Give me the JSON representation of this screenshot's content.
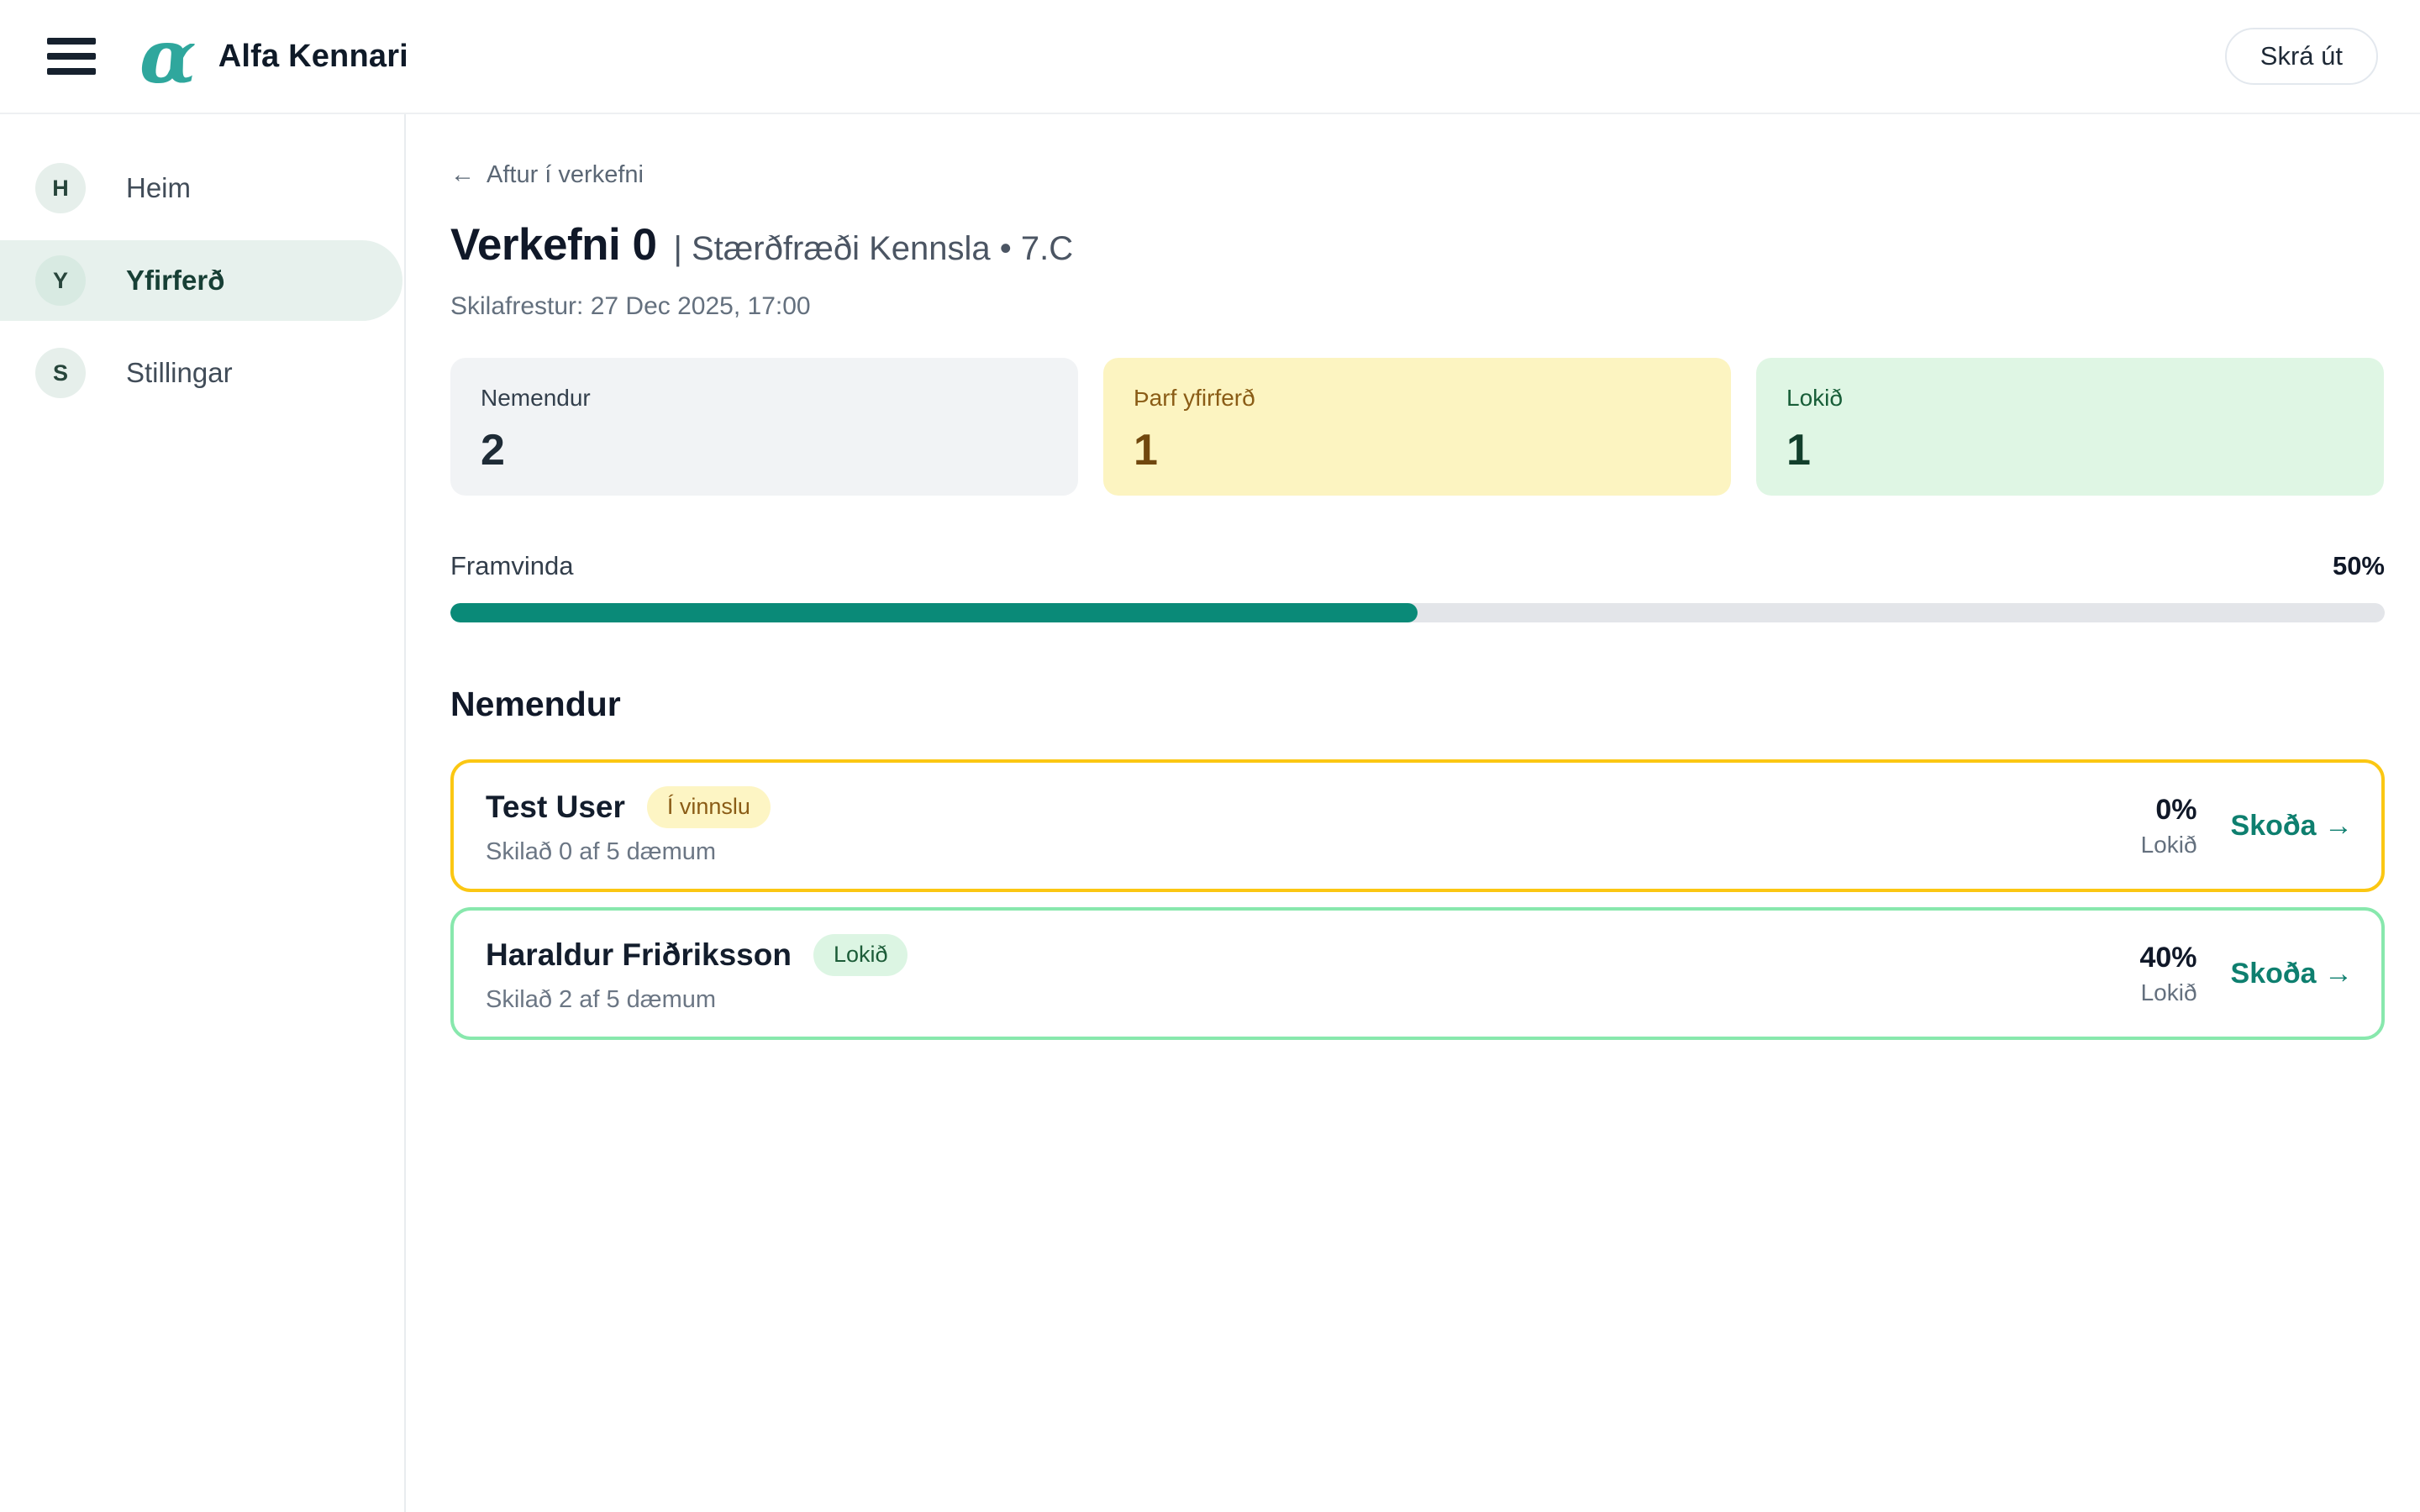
{
  "header": {
    "logo_char": "α",
    "brand": "Alfa Kennari",
    "logout_label": "Skrá út"
  },
  "sidebar": {
    "items": [
      {
        "initial": "H",
        "label": "Heim",
        "active": false
      },
      {
        "initial": "Y",
        "label": "Yfirferð",
        "active": true
      },
      {
        "initial": "S",
        "label": "Stillingar",
        "active": false
      }
    ]
  },
  "main": {
    "back_arrow": "←",
    "back_label": "Aftur í verkefni",
    "title": "Verkefni 0",
    "subtitle": "| Stærðfræði Kennsla • 7.C",
    "deadline": "Skilafrestur: 27 Dec 2025, 17:00"
  },
  "stats": [
    {
      "label": "Nemendur",
      "value": "2",
      "variant": "gray"
    },
    {
      "label": "Þarf yfirferð",
      "value": "1",
      "variant": "yellow"
    },
    {
      "label": "Lokið",
      "value": "1",
      "variant": "green"
    }
  ],
  "progress": {
    "label": "Framvinda",
    "percent": 50,
    "percent_label": "50%"
  },
  "students": {
    "heading": "Nemendur",
    "rows": [
      {
        "name": "Test User",
        "badge": "Í vinnslu",
        "badge_variant": "yellow",
        "sub": "Skilað 0 af 5 dæmum",
        "percent": "0%",
        "percent_caption": "Lokið",
        "action": "Skoða →",
        "border_variant": "yellow"
      },
      {
        "name": "Haraldur Friðriksson",
        "badge": "Lokið",
        "badge_variant": "green",
        "sub": "Skilað 2 af 5 dæmum",
        "percent": "40%",
        "percent_caption": "Lokið",
        "action": "Skoða →",
        "border_variant": "green"
      }
    ]
  },
  "colors": {
    "accent_teal": "#0a8a78",
    "logo_teal": "#2fa79d",
    "link_teal": "#0e7f6f",
    "card_yellow_border": "#fbc713",
    "card_green_border": "#88e8ad",
    "stat_yellow_bg": "#fcf4c1",
    "stat_green_bg": "#dff6e4",
    "stat_gray_bg": "#f1f3f5",
    "sidebar_active_bg": "#e7f1ed"
  }
}
